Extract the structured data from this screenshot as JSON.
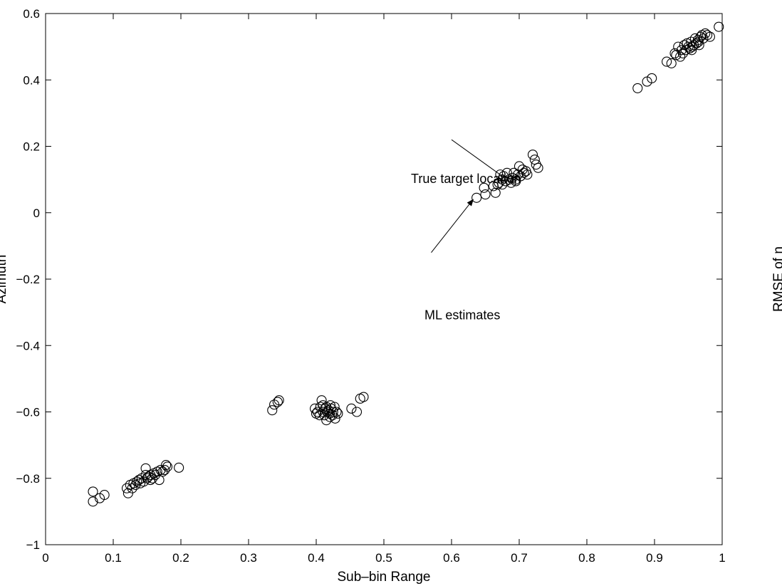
{
  "chart_data": {
    "type": "scatter",
    "title": "",
    "xlabel": "Sub–bin Range",
    "ylabel": "Azimuth",
    "clipped_right_label": "RMSE of η",
    "xlim": [
      0,
      1
    ],
    "ylim": [
      -1,
      0.6
    ],
    "xticks": [
      0,
      0.1,
      0.2,
      0.3,
      0.4,
      0.5,
      0.6,
      0.7,
      0.8,
      0.9,
      1
    ],
    "xtick_labels": [
      "0",
      "0.1",
      "0.2",
      "0.3",
      "0.4",
      "0.5",
      "0.6",
      "0.7",
      "0.8",
      "0.9",
      "1"
    ],
    "yticks": [
      -1,
      -0.8,
      -0.6,
      -0.4,
      -0.2,
      0,
      0.2,
      0.4,
      0.6
    ],
    "ytick_labels": [
      "−1",
      "−0.8",
      "−0.6",
      "−0.4",
      "−0.2",
      "0",
      "0.2",
      "0.4",
      "0.6"
    ],
    "grid": false,
    "marker": "open-circle",
    "series": [
      {
        "name": "ML estimates",
        "points": [
          [
            0.07,
            -0.84
          ],
          [
            0.07,
            -0.87
          ],
          [
            0.08,
            -0.86
          ],
          [
            0.087,
            -0.85
          ],
          [
            0.12,
            -0.83
          ],
          [
            0.122,
            -0.845
          ],
          [
            0.125,
            -0.82
          ],
          [
            0.128,
            -0.83
          ],
          [
            0.13,
            -0.815
          ],
          [
            0.133,
            -0.82
          ],
          [
            0.135,
            -0.81
          ],
          [
            0.138,
            -0.805
          ],
          [
            0.14,
            -0.815
          ],
          [
            0.142,
            -0.8
          ],
          [
            0.145,
            -0.81
          ],
          [
            0.148,
            -0.79
          ],
          [
            0.15,
            -0.8
          ],
          [
            0.152,
            -0.795
          ],
          [
            0.155,
            -0.79
          ],
          [
            0.158,
            -0.8
          ],
          [
            0.16,
            -0.785
          ],
          [
            0.162,
            -0.79
          ],
          [
            0.165,
            -0.78
          ],
          [
            0.168,
            -0.805
          ],
          [
            0.17,
            -0.775
          ],
          [
            0.173,
            -0.78
          ],
          [
            0.176,
            -0.775
          ],
          [
            0.178,
            -0.76
          ],
          [
            0.18,
            -0.765
          ],
          [
            0.197,
            -0.768
          ],
          [
            0.148,
            -0.77
          ],
          [
            0.155,
            -0.805
          ],
          [
            0.335,
            -0.595
          ],
          [
            0.338,
            -0.578
          ],
          [
            0.343,
            -0.57
          ],
          [
            0.345,
            -0.565
          ],
          [
            0.398,
            -0.59
          ],
          [
            0.4,
            -0.605
          ],
          [
            0.402,
            -0.6
          ],
          [
            0.405,
            -0.61
          ],
          [
            0.406,
            -0.585
          ],
          [
            0.408,
            -0.565
          ],
          [
            0.41,
            -0.6
          ],
          [
            0.412,
            -0.61
          ],
          [
            0.413,
            -0.59
          ],
          [
            0.415,
            -0.625
          ],
          [
            0.416,
            -0.6
          ],
          [
            0.418,
            -0.595
          ],
          [
            0.42,
            -0.605
          ],
          [
            0.421,
            -0.58
          ],
          [
            0.422,
            -0.59
          ],
          [
            0.424,
            -0.61
          ],
          [
            0.425,
            -0.6
          ],
          [
            0.427,
            -0.585
          ],
          [
            0.428,
            -0.62
          ],
          [
            0.43,
            -0.6
          ],
          [
            0.432,
            -0.605
          ],
          [
            0.415,
            -0.585
          ],
          [
            0.42,
            -0.615
          ],
          [
            0.41,
            -0.58
          ],
          [
            0.452,
            -0.59
          ],
          [
            0.46,
            -0.6
          ],
          [
            0.465,
            -0.56
          ],
          [
            0.47,
            -0.555
          ],
          [
            0.637,
            0.045
          ],
          [
            0.648,
            0.075
          ],
          [
            0.65,
            0.055
          ],
          [
            0.662,
            0.08
          ],
          [
            0.665,
            0.06
          ],
          [
            0.668,
            0.085
          ],
          [
            0.67,
            0.09
          ],
          [
            0.672,
            0.115
          ],
          [
            0.675,
            0.1
          ],
          [
            0.677,
            0.11
          ],
          [
            0.68,
            0.095
          ],
          [
            0.682,
            0.12
          ],
          [
            0.685,
            0.1
          ],
          [
            0.688,
            0.09
          ],
          [
            0.69,
            0.105
          ],
          [
            0.692,
            0.12
          ],
          [
            0.695,
            0.1
          ],
          [
            0.698,
            0.115
          ],
          [
            0.7,
            0.14
          ],
          [
            0.702,
            0.11
          ],
          [
            0.705,
            0.13
          ],
          [
            0.707,
            0.12
          ],
          [
            0.71,
            0.125
          ],
          [
            0.712,
            0.115
          ],
          [
            0.72,
            0.175
          ],
          [
            0.723,
            0.16
          ],
          [
            0.725,
            0.145
          ],
          [
            0.728,
            0.135
          ],
          [
            0.675,
            0.085
          ],
          [
            0.695,
            0.095
          ],
          [
            0.875,
            0.375
          ],
          [
            0.889,
            0.395
          ],
          [
            0.896,
            0.405
          ],
          [
            0.918,
            0.455
          ],
          [
            0.925,
            0.45
          ],
          [
            0.93,
            0.48
          ],
          [
            0.932,
            0.475
          ],
          [
            0.935,
            0.5
          ],
          [
            0.938,
            0.47
          ],
          [
            0.94,
            0.49
          ],
          [
            0.942,
            0.48
          ],
          [
            0.944,
            0.505
          ],
          [
            0.946,
            0.49
          ],
          [
            0.948,
            0.51
          ],
          [
            0.95,
            0.5
          ],
          [
            0.952,
            0.495
          ],
          [
            0.954,
            0.515
          ],
          [
            0.956,
            0.5
          ],
          [
            0.958,
            0.505
          ],
          [
            0.96,
            0.525
          ],
          [
            0.962,
            0.51
          ],
          [
            0.964,
            0.52
          ],
          [
            0.966,
            0.505
          ],
          [
            0.968,
            0.53
          ],
          [
            0.97,
            0.535
          ],
          [
            0.972,
            0.525
          ],
          [
            0.975,
            0.54
          ],
          [
            0.978,
            0.535
          ],
          [
            0.982,
            0.53
          ],
          [
            0.995,
            0.56
          ],
          [
            0.955,
            0.49
          ],
          [
            0.965,
            0.515
          ]
        ]
      }
    ],
    "annotations": [
      {
        "text": "True target location",
        "x": 0.48,
        "y": 0.25,
        "arrow_to": [
          0.675,
          0.11
        ],
        "arrowhead": false
      },
      {
        "text": "ML estimates",
        "x": 0.5,
        "y": -0.16,
        "arrow_to": [
          0.632,
          0.04
        ],
        "arrowhead": true
      }
    ]
  }
}
